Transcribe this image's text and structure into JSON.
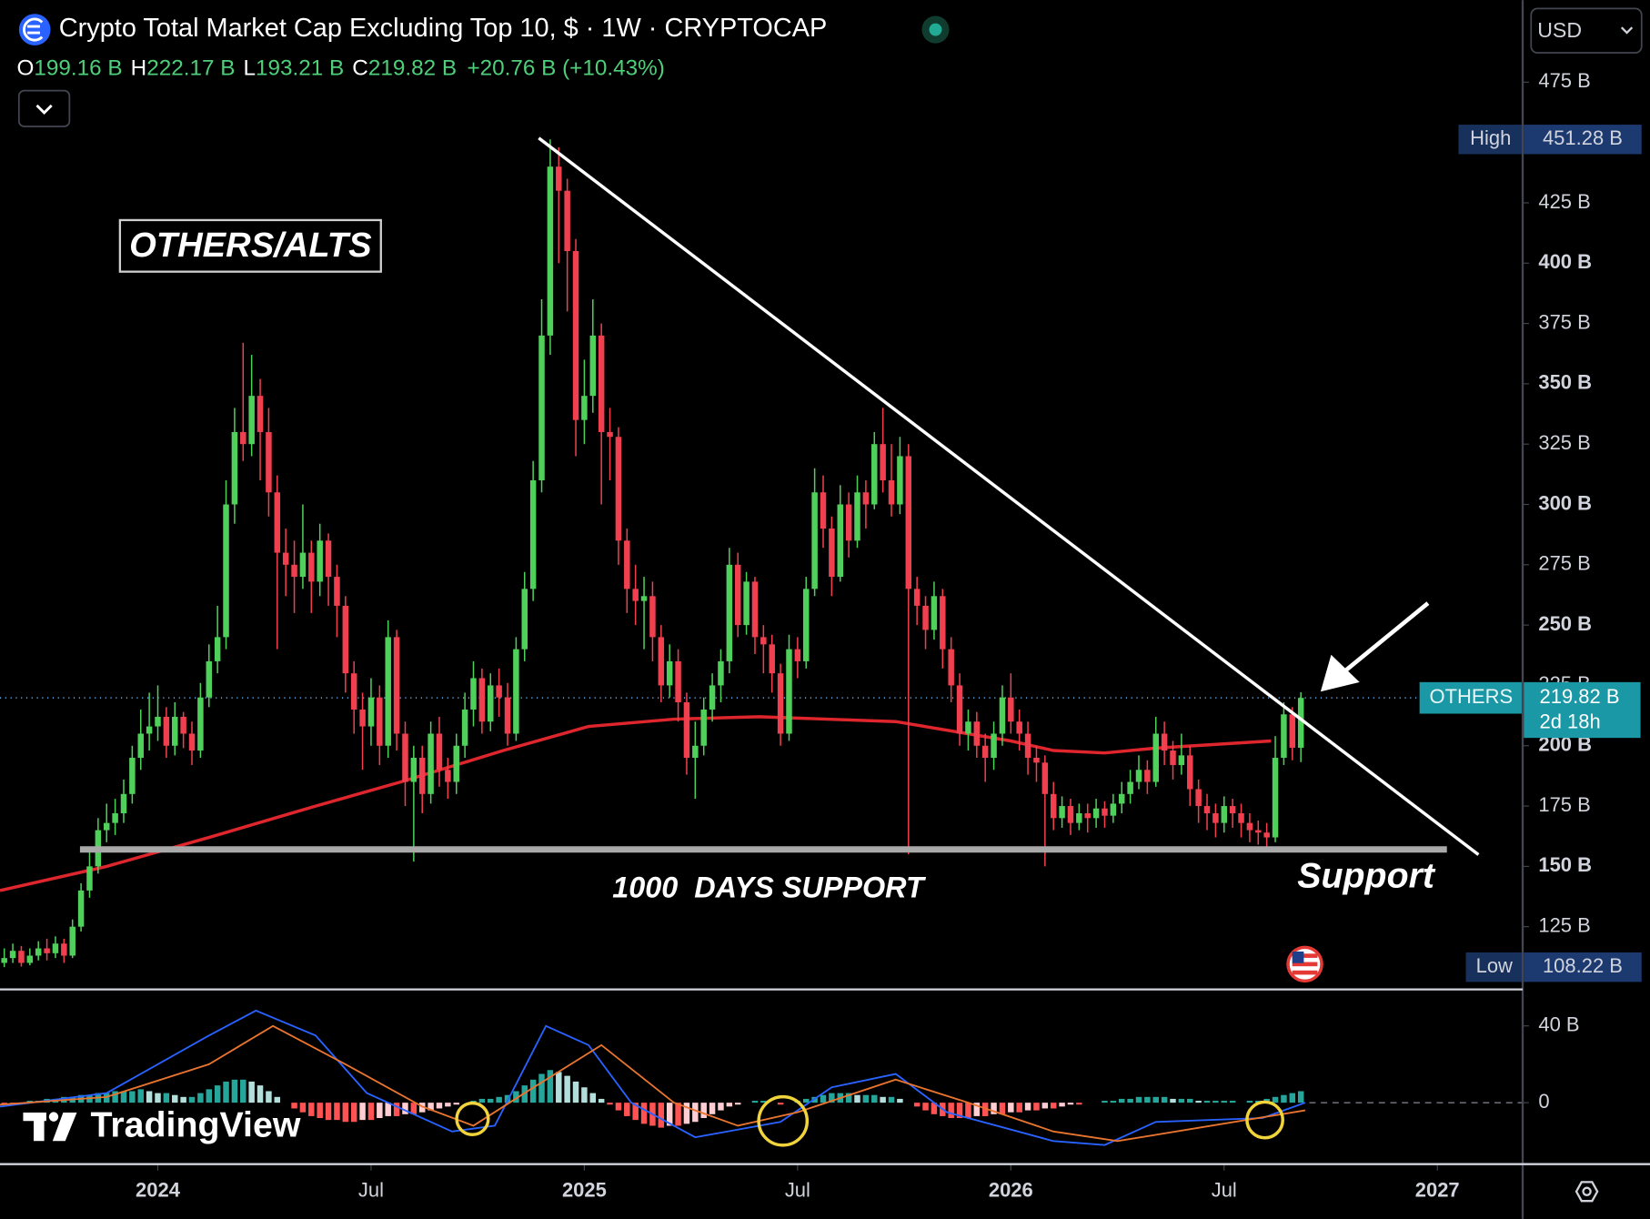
{
  "header": {
    "title": "Crypto Total Market Cap Excluding Top 10, $ · 1W · CRYPTOCAP",
    "ohlc": [
      {
        "label": "O",
        "value": "199.16 B"
      },
      {
        "label": "H",
        "value": "222.17 B"
      },
      {
        "label": "L",
        "value": "193.21 B"
      },
      {
        "label": "C",
        "value": "219.82 B"
      }
    ],
    "change": "+20.76 B",
    "change_pct": "(+10.43%)"
  },
  "currency": "USD",
  "annotations": {
    "box": "OTHERS/ALTS",
    "support_caption": "1000  DAYS SUPPORT",
    "support_label": "Support"
  },
  "branding": "TradingView",
  "chart_data": {
    "type": "candlestick",
    "up_color": "#4fd05a",
    "down_color": "#f0404f",
    "xlim": [
      2023.63,
      2027.2
    ],
    "xticks": [
      {
        "value": 2024,
        "label": "2024"
      },
      {
        "value": 2024.5,
        "label": "Jul"
      },
      {
        "value": 2025,
        "label": "2025"
      },
      {
        "value": 2025.5,
        "label": "Jul"
      },
      {
        "value": 2026,
        "label": "2026"
      },
      {
        "value": 2026.5,
        "label": "Jul"
      },
      {
        "value": 2027,
        "label": "2027"
      }
    ],
    "ylim": [
      99,
      509
    ],
    "yticks": [
      {
        "value": 125,
        "label": "125 B"
      },
      {
        "value": 150,
        "label": "150 B"
      },
      {
        "value": 175,
        "label": "175 B"
      },
      {
        "value": 200,
        "label": "200 B"
      },
      {
        "value": 225,
        "label": "225 B"
      },
      {
        "value": 250,
        "label": "250 B"
      },
      {
        "value": 275,
        "label": "275 B"
      },
      {
        "value": 300,
        "label": "300 B"
      },
      {
        "value": 325,
        "label": "325 B"
      },
      {
        "value": 350,
        "label": "350 B"
      },
      {
        "value": 375,
        "label": "375 B"
      },
      {
        "value": 400,
        "label": "400 B"
      },
      {
        "value": 425,
        "label": "425 B"
      },
      {
        "value": 475,
        "label": "475 B"
      }
    ],
    "x": [
      2023.64,
      2023.66,
      2023.68,
      2023.7,
      2023.72,
      2023.74,
      2023.76,
      2023.78,
      2023.8,
      2023.82,
      2023.84,
      2023.86,
      2023.88,
      2023.9,
      2023.92,
      2023.94,
      2023.96,
      2023.98,
      2024.0,
      2024.02,
      2024.04,
      2024.06,
      2024.08,
      2024.1,
      2024.12,
      2024.14,
      2024.16,
      2024.18,
      2024.2,
      2024.22,
      2024.24,
      2024.26,
      2024.28,
      2024.3,
      2024.32,
      2024.34,
      2024.36,
      2024.38,
      2024.4,
      2024.42,
      2024.44,
      2024.46,
      2024.48,
      2024.5,
      2024.52,
      2024.54,
      2024.56,
      2024.58,
      2024.6,
      2024.62,
      2024.64,
      2024.66,
      2024.68,
      2024.7,
      2024.72,
      2024.74,
      2024.76,
      2024.78,
      2024.8,
      2024.82,
      2024.84,
      2024.86,
      2024.88,
      2024.9,
      2024.92,
      2024.94,
      2024.96,
      2024.98,
      2025.0,
      2025.02,
      2025.04,
      2025.06,
      2025.08,
      2025.1,
      2025.12,
      2025.14,
      2025.16,
      2025.18,
      2025.2,
      2025.22,
      2025.24,
      2025.26,
      2025.28,
      2025.3,
      2025.32,
      2025.34,
      2025.36,
      2025.38,
      2025.4,
      2025.42,
      2025.44,
      2025.46,
      2025.48,
      2025.5,
      2025.52,
      2025.54,
      2025.56,
      2025.58,
      2025.6,
      2025.62,
      2025.64,
      2025.66,
      2025.68,
      2025.7,
      2025.72,
      2025.74,
      2025.76,
      2025.78,
      2025.8,
      2025.82,
      2025.84,
      2025.86,
      2025.88,
      2025.9,
      2025.92,
      2025.94,
      2025.96,
      2025.98,
      2026.0,
      2026.02,
      2026.04,
      2026.06,
      2026.08,
      2026.1,
      2026.12,
      2026.14,
      2026.16,
      2026.18,
      2026.2,
      2026.22,
      2026.24,
      2026.26,
      2026.28,
      2026.3,
      2026.32,
      2026.34,
      2026.36,
      2026.38,
      2026.4,
      2026.42,
      2026.44,
      2026.46,
      2026.48,
      2026.5,
      2026.52,
      2026.54,
      2026.56,
      2026.58,
      2026.6,
      2026.62,
      2026.64,
      2026.66,
      2026.68
    ],
    "open": [
      110,
      112,
      115,
      110,
      113,
      116,
      114,
      118,
      113,
      125,
      140,
      150,
      165,
      168,
      172,
      180,
      195,
      205,
      208,
      212,
      200,
      212,
      205,
      198,
      220,
      235,
      245,
      300,
      330,
      325,
      345,
      330,
      305,
      280,
      275,
      270,
      280,
      268,
      285,
      270,
      258,
      230,
      215,
      208,
      220,
      200,
      245,
      205,
      185,
      195,
      180,
      205,
      190,
      185,
      200,
      215,
      228,
      210,
      225,
      220,
      205,
      240,
      265,
      310,
      370,
      440,
      430,
      405,
      335,
      345,
      370,
      330,
      328,
      285,
      265,
      260,
      262,
      245,
      225,
      235,
      218,
      195,
      200,
      215,
      225,
      235,
      275,
      250,
      268,
      245,
      242,
      230,
      205,
      240,
      235,
      265,
      305,
      290,
      270,
      300,
      285,
      305,
      300,
      325,
      310,
      300,
      320,
      265,
      258,
      248,
      262,
      240,
      225,
      205,
      210,
      200,
      195,
      205,
      220,
      210,
      205,
      195,
      193,
      180,
      170,
      175,
      168,
      172,
      170,
      174,
      171,
      176,
      180,
      185,
      190,
      185,
      205,
      198,
      192,
      196,
      182,
      175,
      172,
      168,
      175,
      172,
      168,
      165,
      164,
      162,
      195,
      213,
      199.16
    ],
    "high": [
      116,
      118,
      117,
      116,
      119,
      120,
      121,
      120,
      128,
      143,
      156,
      170,
      176,
      178,
      186,
      200,
      215,
      222,
      225,
      216,
      218,
      214,
      210,
      226,
      242,
      258,
      310,
      340,
      367,
      362,
      352,
      340,
      312,
      290,
      285,
      300,
      285,
      292,
      288,
      275,
      262,
      235,
      222,
      228,
      225,
      252,
      248,
      210,
      200,
      200,
      210,
      212,
      195,
      205,
      222,
      235,
      232,
      230,
      232,
      226,
      245,
      272,
      318,
      385,
      451.28,
      448,
      435,
      410,
      360,
      385,
      375,
      340,
      332,
      290,
      275,
      270,
      268,
      250,
      242,
      240,
      222,
      210,
      220,
      230,
      240,
      282,
      280,
      272,
      270,
      250,
      246,
      234,
      246,
      245,
      270,
      315,
      312,
      295,
      308,
      305,
      312,
      310,
      330,
      340,
      325,
      328,
      325,
      270,
      262,
      268,
      265,
      245,
      230,
      215,
      214,
      205,
      210,
      225,
      230,
      215,
      210,
      200,
      196,
      185,
      179,
      178,
      176,
      176,
      178,
      177,
      180,
      185,
      190,
      196,
      194,
      212,
      210,
      202,
      205,
      200,
      186,
      180,
      176,
      179,
      178,
      176,
      172,
      169,
      168,
      204,
      218,
      216,
      222.17
    ],
    "low": [
      108.22,
      110,
      108.5,
      109,
      111,
      111,
      112,
      110,
      112,
      123,
      137,
      147,
      160,
      163,
      168,
      176,
      190,
      198,
      202,
      195,
      196,
      199,
      192,
      195,
      216,
      230,
      240,
      292,
      318,
      320,
      310,
      295,
      240,
      262,
      255,
      265,
      255,
      262,
      258,
      245,
      222,
      205,
      190,
      200,
      192,
      195,
      198,
      175,
      152,
      172,
      176,
      183,
      178,
      180,
      195,
      208,
      205,
      206,
      212,
      200,
      202,
      235,
      260,
      305,
      362,
      400,
      380,
      320,
      325,
      338,
      300,
      310,
      275,
      255,
      250,
      240,
      235,
      218,
      220,
      210,
      188,
      178,
      196,
      210,
      218,
      230,
      245,
      246,
      238,
      230,
      222,
      200,
      202,
      228,
      232,
      262,
      282,
      262,
      268,
      278,
      282,
      290,
      298,
      305,
      295,
      296,
      155,
      250,
      240,
      244,
      232,
      218,
      200,
      198,
      195,
      185,
      190,
      200,
      205,
      198,
      188,
      185,
      150,
      165,
      166,
      163,
      165,
      164,
      166,
      166,
      168,
      172,
      176,
      182,
      180,
      183,
      192,
      186,
      188,
      175,
      168,
      165,
      162,
      164,
      166,
      162,
      160,
      159,
      158,
      160,
      192,
      194,
      193.21
    ],
    "close": [
      112,
      115,
      110,
      113,
      116,
      114,
      118,
      113,
      125,
      140,
      150,
      165,
      168,
      172,
      180,
      195,
      205,
      208,
      212,
      200,
      212,
      205,
      198,
      220,
      235,
      245,
      300,
      330,
      325,
      345,
      330,
      305,
      280,
      275,
      270,
      280,
      268,
      285,
      270,
      258,
      230,
      215,
      208,
      220,
      200,
      245,
      205,
      185,
      195,
      180,
      205,
      190,
      185,
      200,
      215,
      228,
      210,
      225,
      220,
      205,
      240,
      265,
      310,
      370,
      440,
      430,
      405,
      335,
      345,
      370,
      330,
      328,
      285,
      265,
      260,
      262,
      245,
      225,
      235,
      218,
      195,
      200,
      215,
      225,
      235,
      275,
      250,
      268,
      245,
      242,
      230,
      205,
      240,
      235,
      265,
      305,
      290,
      270,
      300,
      285,
      305,
      300,
      325,
      310,
      300,
      320,
      265,
      258,
      248,
      262,
      240,
      225,
      205,
      210,
      200,
      195,
      205,
      220,
      210,
      205,
      195,
      193,
      180,
      170,
      175,
      168,
      172,
      170,
      174,
      171,
      176,
      180,
      185,
      190,
      185,
      205,
      198,
      192,
      196,
      182,
      175,
      172,
      168,
      175,
      172,
      168,
      165,
      164,
      162,
      195,
      213,
      199.16,
      219.82
    ],
    "moving_average": {
      "color": "#e0262d",
      "x": [
        2023.63,
        2023.88,
        2024.12,
        2024.37,
        2024.57,
        2024.81,
        2025.01,
        2025.21,
        2025.41,
        2025.73,
        2026.0,
        2026.1,
        2026.22,
        2026.34,
        2026.61
      ],
      "values": [
        140,
        150,
        162,
        175,
        185,
        198,
        208,
        211,
        212,
        210,
        202,
        198,
        197,
        199,
        202
      ]
    },
    "markers": {
      "high": {
        "label": "High",
        "value": 451.28,
        "value_label": "451.28 B"
      },
      "low": {
        "label": "Low",
        "value": 108.22,
        "value_label": "108.22 B"
      },
      "last": {
        "label": "OTHERS",
        "value": 219.82,
        "value_label": "219.82 B",
        "countdown": "2d 18h"
      }
    },
    "macd": {
      "ylim": [
        -32,
        59
      ],
      "yticks": [
        {
          "value": 40,
          "label": "40 B"
        },
        0
      ],
      "histogram_colors": [
        "#26a69a",
        "#b2dfdb",
        "#ff5252",
        "#ffcdd2"
      ],
      "histogram": [
        -1,
        -1,
        0,
        1,
        1,
        2,
        2,
        3,
        3,
        4,
        4,
        5,
        5,
        6,
        6,
        6,
        7,
        6,
        5,
        5,
        4,
        3,
        3,
        5,
        7,
        9,
        11,
        12,
        12,
        11,
        9,
        6,
        3,
        0,
        -3,
        -5,
        -7,
        -8,
        -9,
        -9,
        -10,
        -10,
        -9,
        -9,
        -8,
        -7,
        -7,
        -6,
        -6,
        -5,
        -4,
        -3,
        -2,
        -1,
        0,
        1,
        2,
        2,
        3,
        4,
        6,
        9,
        12,
        15,
        17,
        16,
        14,
        11,
        8,
        5,
        2,
        -1,
        -4,
        -7,
        -9,
        -11,
        -12,
        -13,
        -12,
        -12,
        -11,
        -10,
        -8,
        -6,
        -4,
        -2,
        -1,
        0,
        1,
        1,
        0,
        -1,
        0,
        1,
        2,
        3,
        4,
        5,
        5,
        5,
        4,
        4,
        4,
        3,
        3,
        2,
        0,
        -2,
        -4,
        -6,
        -7,
        -8,
        -8,
        -8,
        -7,
        -7,
        -6,
        -6,
        -5,
        -5,
        -4,
        -4,
        -3,
        -3,
        -2,
        -1,
        -1,
        0,
        0,
        1,
        1,
        2,
        2,
        3,
        3,
        3,
        3,
        2,
        2,
        2,
        1,
        1,
        1,
        1,
        1,
        0,
        1,
        1,
        2,
        3,
        4,
        5,
        6
      ],
      "macd_line": {
        "color": "#2962ff",
        "x": [
          2023.63,
          2023.88,
          2024.12,
          2024.23,
          2024.37,
          2024.49,
          2024.69,
          2024.79,
          2024.91,
          2025.01,
          2025.11,
          2025.26,
          2025.46,
          2025.58,
          2025.73,
          2025.85,
          2026.1,
          2026.22,
          2026.34,
          2026.59,
          2026.69
        ],
        "values": [
          -2,
          5,
          35,
          48,
          35,
          5,
          -15,
          -12,
          40,
          30,
          0,
          -18,
          -10,
          8,
          15,
          -5,
          -20,
          -22,
          -10,
          -8,
          0
        ]
      },
      "signal_line": {
        "color": "#e8742f",
        "x": [
          2023.63,
          2023.88,
          2024.12,
          2024.27,
          2024.44,
          2024.62,
          2024.74,
          2024.86,
          2025.04,
          2025.21,
          2025.36,
          2025.5,
          2025.73,
          2025.9,
          2026.1,
          2026.25,
          2026.47,
          2026.69
        ],
        "values": [
          -1,
          3,
          20,
          40,
          20,
          -2,
          -12,
          5,
          30,
          0,
          -12,
          -5,
          12,
          0,
          -15,
          -20,
          -12,
          -4
        ]
      }
    }
  }
}
